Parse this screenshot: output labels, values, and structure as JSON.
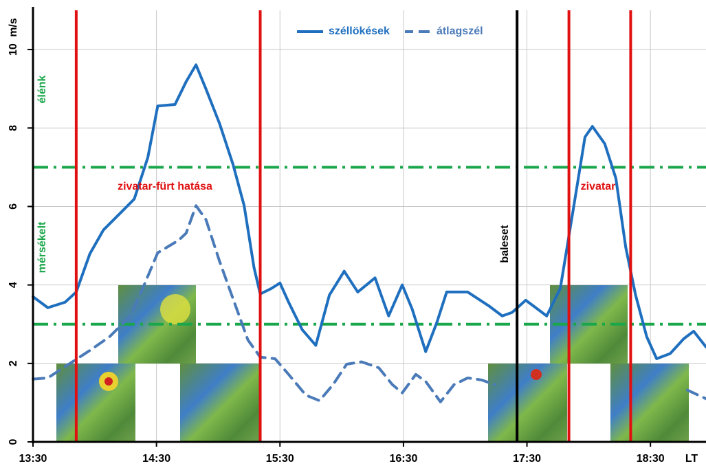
{
  "chart_data": {
    "type": "line",
    "y_label": "m/s",
    "x_label": "LT",
    "xlim": [
      13.5,
      18.95
    ],
    "ylim": [
      0,
      11
    ],
    "xticks": [
      {
        "value": 13.5,
        "label": "13:30"
      },
      {
        "value": 14.5,
        "label": "14:30"
      },
      {
        "value": 15.5,
        "label": "15:30"
      },
      {
        "value": 16.5,
        "label": "16:30"
      },
      {
        "value": 17.5,
        "label": "17:30"
      },
      {
        "value": 18.5,
        "label": "18:30"
      }
    ],
    "yticks": [
      0,
      2,
      4,
      6,
      8,
      10
    ],
    "grid": true,
    "series": [
      {
        "name": "széllökések",
        "color": "#1f6fbf",
        "dash": "solid",
        "x": [
          13.5,
          13.62,
          13.76,
          13.85,
          13.96,
          14.07,
          14.21,
          14.32,
          14.43,
          14.51,
          14.65,
          14.74,
          14.82,
          14.9,
          15.01,
          15.12,
          15.21,
          15.29,
          15.34,
          15.43,
          15.5,
          15.57,
          15.68,
          15.79,
          15.9,
          16.02,
          16.13,
          16.27,
          16.38,
          16.49,
          16.57,
          16.68,
          16.77,
          16.85,
          17.02,
          17.19,
          17.3,
          17.38,
          17.49,
          17.55,
          17.66,
          17.77,
          17.88,
          17.97,
          18.03,
          18.13,
          18.22,
          18.3,
          18.38,
          18.47,
          18.55,
          18.66,
          18.77,
          18.85,
          18.95
        ],
        "values": [
          3.7,
          3.42,
          3.56,
          3.82,
          4.79,
          5.4,
          5.84,
          6.19,
          7.25,
          8.56,
          8.6,
          9.18,
          9.61,
          9.0,
          8.12,
          7.07,
          6.02,
          4.44,
          3.77,
          3.91,
          4.05,
          3.56,
          2.86,
          2.46,
          3.74,
          4.35,
          3.82,
          4.18,
          3.21,
          4.0,
          3.39,
          2.3,
          3.04,
          3.82,
          3.82,
          3.47,
          3.21,
          3.3,
          3.61,
          3.47,
          3.21,
          3.91,
          6.02,
          7.77,
          8.04,
          7.6,
          6.72,
          4.96,
          3.74,
          2.68,
          2.12,
          2.25,
          2.63,
          2.82,
          2.42
        ]
      },
      {
        "name": "átlagszél",
        "color": "#4a7ab8",
        "dash": "dashed",
        "x": [
          13.5,
          13.62,
          13.79,
          13.96,
          14.12,
          14.29,
          14.4,
          14.51,
          14.68,
          14.74,
          14.82,
          14.9,
          15.01,
          15.13,
          15.24,
          15.34,
          15.46,
          15.57,
          15.71,
          15.82,
          15.93,
          16.04,
          16.16,
          16.3,
          16.41,
          16.49,
          16.6,
          16.68,
          16.8,
          16.91,
          17.02,
          17.13,
          17.24,
          17.6,
          18.8,
          18.95
        ],
        "values": [
          1.6,
          1.63,
          1.98,
          2.33,
          2.68,
          3.21,
          4.0,
          4.82,
          5.14,
          5.32,
          6.02,
          5.67,
          4.61,
          3.56,
          2.6,
          2.16,
          2.12,
          1.72,
          1.19,
          1.05,
          1.46,
          1.98,
          2.04,
          1.89,
          1.46,
          1.25,
          1.72,
          1.54,
          1.02,
          1.46,
          1.63,
          1.58,
          1.46,
          null,
          1.32,
          1.1
        ]
      }
    ],
    "reference_lines": [
      {
        "value": 7,
        "color": "#1aa64a"
      },
      {
        "value": 3,
        "color": "#1aa64a"
      }
    ],
    "event_lines": [
      {
        "x": 13.85,
        "color": "#e01010"
      },
      {
        "x": 15.34,
        "color": "#e01010"
      },
      {
        "x": 17.42,
        "color": "#000000"
      },
      {
        "x": 17.84,
        "color": "#e01010"
      },
      {
        "x": 18.34,
        "color": "#e01010"
      }
    ],
    "annotations": [
      "zivatar-fürt hatása",
      "zivatar",
      "baleset",
      "élénk",
      "mérsékelt"
    ],
    "legend": "top"
  }
}
